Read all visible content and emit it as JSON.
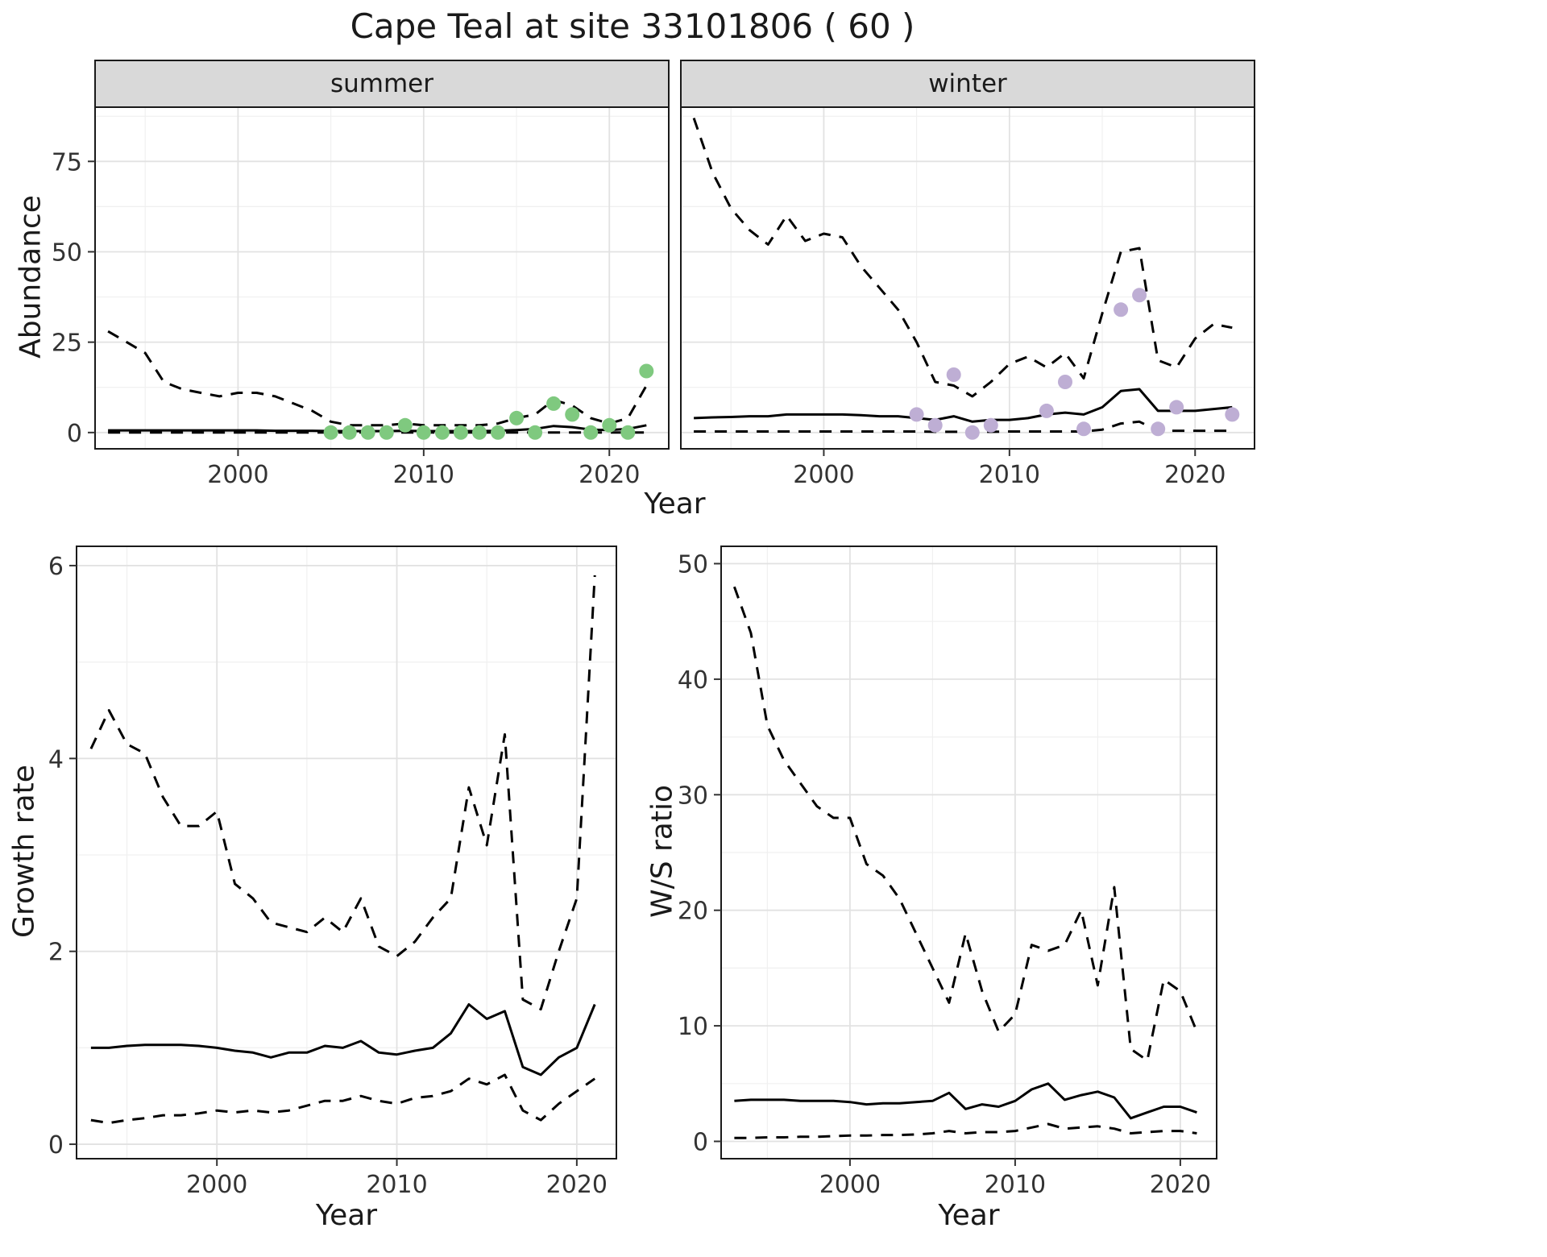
{
  "title": "Cape Teal at site 33101806 ( 60 )",
  "colors": {
    "summer_points": "#7fc97f",
    "winter_points": "#beaed4",
    "line": "#000000",
    "strip_bg": "#d9d9d9",
    "panel_border": "#1a1a1a"
  },
  "chart_data": [
    {
      "type": "line",
      "facet_label": "summer",
      "xlabel": "Year",
      "ylabel": "Abundance",
      "xlim": [
        1992.3,
        2023.2
      ],
      "ylim": [
        -4.5,
        90
      ],
      "xticks": [
        2000,
        2010,
        2020
      ],
      "yticks": [
        0,
        25,
        50,
        75
      ],
      "grid": true,
      "series": [
        {
          "name": "upper-ci",
          "style": "dashed",
          "color": "#000000",
          "x": [
            1993,
            1994,
            1995,
            1996,
            1997,
            1998,
            1999,
            2000,
            2001,
            2002,
            2003,
            2004,
            2005,
            2006,
            2007,
            2008,
            2009,
            2010,
            2011,
            2012,
            2013,
            2014,
            2015,
            2016,
            2017,
            2018,
            2019,
            2020,
            2021,
            2022
          ],
          "values": [
            28,
            25,
            22,
            14,
            12,
            11,
            10,
            11,
            11,
            10,
            8,
            6,
            3,
            2,
            2,
            2,
            2.5,
            2,
            2,
            2,
            2,
            2.5,
            4,
            5,
            9,
            7.5,
            4,
            2.5,
            4,
            13
          ]
        },
        {
          "name": "mean",
          "style": "solid",
          "color": "#000000",
          "x": [
            1993,
            1994,
            1995,
            1996,
            1997,
            1998,
            1999,
            2000,
            2001,
            2002,
            2003,
            2004,
            2005,
            2006,
            2007,
            2008,
            2009,
            2010,
            2011,
            2012,
            2013,
            2014,
            2015,
            2016,
            2017,
            2018,
            2019,
            2020,
            2021,
            2022
          ],
          "values": [
            0.6,
            0.6,
            0.6,
            0.6,
            0.6,
            0.6,
            0.6,
            0.6,
            0.6,
            0.5,
            0.5,
            0.5,
            0.4,
            0.4,
            0.4,
            0.4,
            0.5,
            0.4,
            0.4,
            0.4,
            0.4,
            0.5,
            0.7,
            1,
            1.8,
            1.5,
            0.8,
            0.7,
            1,
            2
          ]
        },
        {
          "name": "lower-ci",
          "style": "dashed",
          "color": "#000000",
          "x": [
            1993,
            1994,
            1995,
            1996,
            1997,
            1998,
            1999,
            2000,
            2001,
            2002,
            2003,
            2004,
            2005,
            2006,
            2007,
            2008,
            2009,
            2010,
            2011,
            2012,
            2013,
            2014,
            2015,
            2016,
            2017,
            2018,
            2019,
            2020,
            2021,
            2022
          ],
          "values": [
            0,
            0,
            0,
            0,
            0,
            0,
            0,
            0,
            0,
            0,
            0,
            0,
            0,
            0,
            0,
            0,
            0,
            0,
            0,
            0,
            0,
            0,
            0,
            0,
            0,
            0,
            0,
            0,
            0,
            0
          ]
        }
      ],
      "points": {
        "name": "summer-observations",
        "color": "#7fc97f",
        "x": [
          2005,
          2006,
          2007,
          2008,
          2009,
          2010,
          2011,
          2012,
          2013,
          2014,
          2015,
          2016,
          2017,
          2018,
          2019,
          2020,
          2021,
          2022
        ],
        "values": [
          0,
          0,
          0,
          0,
          2,
          0,
          0,
          0,
          0,
          0,
          4,
          0,
          8,
          5,
          0,
          2,
          0,
          17
        ]
      }
    },
    {
      "type": "line",
      "facet_label": "winter",
      "xlabel": "Year",
      "ylabel": "Abundance",
      "xlim": [
        1992.3,
        2023.2
      ],
      "ylim": [
        -4.5,
        90
      ],
      "xticks": [
        2000,
        2010,
        2020
      ],
      "yticks": [
        0,
        25,
        50,
        75
      ],
      "grid": true,
      "series": [
        {
          "name": "upper-ci",
          "style": "dashed",
          "color": "#000000",
          "x": [
            1993,
            1994,
            1995,
            1996,
            1997,
            1998,
            1999,
            2000,
            2001,
            2002,
            2003,
            2004,
            2005,
            2006,
            2007,
            2008,
            2009,
            2010,
            2011,
            2012,
            2013,
            2014,
            2015,
            2016,
            2017,
            2018,
            2019,
            2020,
            2021,
            2022
          ],
          "values": [
            87,
            72,
            62,
            56,
            52,
            60,
            53,
            55,
            54,
            46,
            40,
            34,
            25,
            14,
            13,
            10,
            14,
            19,
            21,
            18,
            22,
            15,
            33,
            50,
            51,
            20,
            18,
            26,
            30,
            29
          ]
        },
        {
          "name": "mean",
          "style": "solid",
          "color": "#000000",
          "x": [
            1993,
            1994,
            1995,
            1996,
            1997,
            1998,
            1999,
            2000,
            2001,
            2002,
            2003,
            2004,
            2005,
            2006,
            2007,
            2008,
            2009,
            2010,
            2011,
            2012,
            2013,
            2014,
            2015,
            2016,
            2017,
            2018,
            2019,
            2020,
            2021,
            2022
          ],
          "values": [
            4,
            4.2,
            4.3,
            4.5,
            4.5,
            5,
            5,
            5,
            5,
            4.8,
            4.5,
            4.5,
            4,
            3.5,
            4.5,
            3,
            3.5,
            3.5,
            4,
            5,
            5.5,
            5,
            7,
            11.5,
            12,
            6,
            6,
            6,
            6.5,
            7
          ]
        },
        {
          "name": "lower-ci",
          "style": "dashed",
          "color": "#000000",
          "x": [
            1993,
            1994,
            1995,
            1996,
            1997,
            1998,
            1999,
            2000,
            2001,
            2002,
            2003,
            2004,
            2005,
            2006,
            2007,
            2008,
            2009,
            2010,
            2011,
            2012,
            2013,
            2014,
            2015,
            2016,
            2017,
            2018,
            2019,
            2020,
            2021,
            2022
          ],
          "values": [
            0.3,
            0.3,
            0.3,
            0.3,
            0.3,
            0.3,
            0.3,
            0.3,
            0.3,
            0.3,
            0.3,
            0.3,
            0.3,
            0.2,
            0.2,
            0.2,
            0.2,
            0.3,
            0.3,
            0.3,
            0.3,
            0.3,
            0.8,
            2.5,
            3,
            0.5,
            0.5,
            0.5,
            0.5,
            0.5
          ]
        }
      ],
      "points": {
        "name": "winter-observations",
        "color": "#beaed4",
        "x": [
          2005,
          2006,
          2007,
          2008,
          2009,
          2012,
          2013,
          2014,
          2016,
          2017,
          2018,
          2019,
          2022
        ],
        "values": [
          5,
          2,
          16,
          0,
          2,
          6,
          14,
          1,
          34,
          38,
          1,
          7,
          5
        ]
      }
    },
    {
      "type": "line",
      "xlabel": "Year",
      "ylabel": "Growth rate",
      "xlim": [
        1992.2,
        2022.2
      ],
      "ylim": [
        -0.15,
        6.2
      ],
      "xticks": [
        2000,
        2010,
        2020
      ],
      "yticks": [
        0,
        2,
        4,
        6
      ],
      "grid": true,
      "series": [
        {
          "name": "upper-ci",
          "style": "dashed",
          "color": "#000000",
          "x": [
            1993,
            1994,
            1995,
            1996,
            1997,
            1998,
            1999,
            2000,
            2001,
            2002,
            2003,
            2004,
            2005,
            2006,
            2007,
            2008,
            2009,
            2010,
            2011,
            2012,
            2013,
            2014,
            2015,
            2016,
            2017,
            2018,
            2019,
            2020,
            2021
          ],
          "values": [
            4.1,
            4.5,
            4.15,
            4.05,
            3.6,
            3.3,
            3.3,
            3.45,
            2.7,
            2.55,
            2.3,
            2.25,
            2.2,
            2.35,
            2.2,
            2.55,
            2.05,
            1.95,
            2.1,
            2.35,
            2.55,
            3.7,
            3.1,
            4.25,
            1.5,
            1.4,
            2,
            2.55,
            5.9
          ]
        },
        {
          "name": "mean",
          "style": "solid",
          "color": "#000000",
          "x": [
            1993,
            1994,
            1995,
            1996,
            1997,
            1998,
            1999,
            2000,
            2001,
            2002,
            2003,
            2004,
            2005,
            2006,
            2007,
            2008,
            2009,
            2010,
            2011,
            2012,
            2013,
            2014,
            2015,
            2016,
            2017,
            2018,
            2019,
            2020,
            2021
          ],
          "values": [
            1,
            1,
            1.02,
            1.03,
            1.03,
            1.03,
            1.02,
            1,
            0.97,
            0.95,
            0.9,
            0.95,
            0.95,
            1.02,
            1,
            1.07,
            0.95,
            0.93,
            0.97,
            1,
            1.15,
            1.45,
            1.3,
            1.38,
            0.8,
            0.72,
            0.9,
            1,
            1.45
          ]
        },
        {
          "name": "lower-ci",
          "style": "dashed",
          "color": "#000000",
          "x": [
            1993,
            1994,
            1995,
            1996,
            1997,
            1998,
            1999,
            2000,
            2001,
            2002,
            2003,
            2004,
            2005,
            2006,
            2007,
            2008,
            2009,
            2010,
            2011,
            2012,
            2013,
            2014,
            2015,
            2016,
            2017,
            2018,
            2019,
            2020,
            2021
          ],
          "values": [
            0.25,
            0.22,
            0.25,
            0.27,
            0.3,
            0.3,
            0.32,
            0.35,
            0.33,
            0.35,
            0.33,
            0.35,
            0.4,
            0.45,
            0.45,
            0.5,
            0.45,
            0.42,
            0.48,
            0.5,
            0.55,
            0.68,
            0.62,
            0.72,
            0.35,
            0.25,
            0.42,
            0.55,
            0.68
          ]
        }
      ]
    },
    {
      "type": "line",
      "xlabel": "Year",
      "ylabel": "W/S ratio",
      "xlim": [
        1992.2,
        2022.2
      ],
      "ylim": [
        -1.5,
        51.5
      ],
      "xticks": [
        2000,
        2010,
        2020
      ],
      "yticks": [
        0,
        10,
        20,
        30,
        40,
        50
      ],
      "grid": true,
      "series": [
        {
          "name": "upper-ci",
          "style": "dashed",
          "color": "#000000",
          "x": [
            1993,
            1994,
            1995,
            1996,
            1997,
            1998,
            1999,
            2000,
            2001,
            2002,
            2003,
            2004,
            2005,
            2006,
            2007,
            2008,
            2009,
            2010,
            2011,
            2012,
            2013,
            2014,
            2015,
            2016,
            2017,
            2018,
            2019,
            2020,
            2021
          ],
          "values": [
            48,
            44,
            36,
            33,
            31,
            29,
            28,
            28,
            24,
            23,
            21,
            18,
            15,
            12,
            18,
            13,
            9.5,
            11,
            17,
            16.5,
            17,
            20,
            13.5,
            22,
            8,
            7,
            14,
            13,
            9.5
          ]
        },
        {
          "name": "mean",
          "style": "solid",
          "color": "#000000",
          "x": [
            1993,
            1994,
            1995,
            1996,
            1997,
            1998,
            1999,
            2000,
            2001,
            2002,
            2003,
            2004,
            2005,
            2006,
            2007,
            2008,
            2009,
            2010,
            2011,
            2012,
            2013,
            2014,
            2015,
            2016,
            2017,
            2018,
            2019,
            2020,
            2021
          ],
          "values": [
            3.5,
            3.6,
            3.6,
            3.6,
            3.5,
            3.5,
            3.5,
            3.4,
            3.2,
            3.3,
            3.3,
            3.4,
            3.5,
            4.2,
            2.8,
            3.2,
            3,
            3.5,
            4.5,
            5,
            3.6,
            4,
            4.3,
            3.8,
            2,
            2.5,
            3,
            3,
            2.5
          ]
        },
        {
          "name": "lower-ci",
          "style": "dashed",
          "color": "#000000",
          "x": [
            1993,
            1994,
            1995,
            1996,
            1997,
            1998,
            1999,
            2000,
            2001,
            2002,
            2003,
            2004,
            2005,
            2006,
            2007,
            2008,
            2009,
            2010,
            2011,
            2012,
            2013,
            2014,
            2015,
            2016,
            2017,
            2018,
            2019,
            2020,
            2021
          ],
          "values": [
            0.3,
            0.3,
            0.35,
            0.35,
            0.4,
            0.4,
            0.45,
            0.5,
            0.5,
            0.55,
            0.55,
            0.6,
            0.7,
            0.9,
            0.7,
            0.8,
            0.8,
            0.9,
            1.2,
            1.5,
            1.1,
            1.2,
            1.3,
            1.1,
            0.7,
            0.8,
            0.9,
            0.9,
            0.7
          ]
        }
      ]
    }
  ]
}
